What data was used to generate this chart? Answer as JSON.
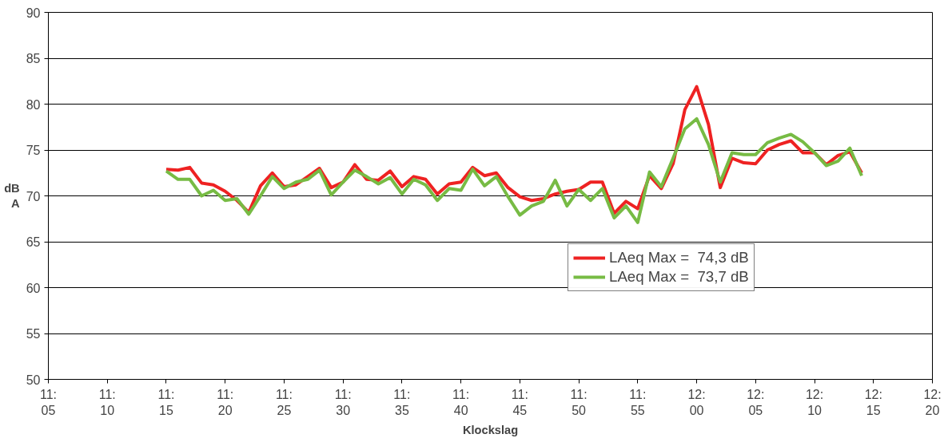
{
  "chart_data": {
    "type": "line",
    "xlabel": "Klockslag",
    "ylabel": "dB\nA",
    "categories": [
      "11:\n05",
      null,
      null,
      null,
      null,
      "11:\n10",
      null,
      null,
      null,
      null,
      "11:\n15",
      null,
      null,
      null,
      null,
      "11:\n20",
      null,
      null,
      null,
      null,
      "11:\n25",
      null,
      null,
      null,
      null,
      "11:\n30",
      null,
      null,
      null,
      null,
      "11:\n35",
      null,
      null,
      null,
      null,
      "11:\n40",
      null,
      null,
      null,
      null,
      "11:\n45",
      null,
      null,
      null,
      null,
      "11:\n50",
      null,
      null,
      null,
      null,
      "11:\n55",
      null,
      null,
      null,
      null,
      "12:\n00",
      null,
      null,
      null,
      null,
      "12:\n05",
      null,
      null,
      null,
      null,
      "12:\n10",
      null,
      null,
      null,
      null,
      "12:\n15",
      null,
      null,
      null,
      null,
      "12:\n20"
    ],
    "series": [
      {
        "name": "LAeq Max =  74,3 dB",
        "color": "#ee2222",
        "values": [
          null,
          null,
          null,
          null,
          null,
          null,
          null,
          null,
          null,
          null,
          72.9,
          72.8,
          73.1,
          71.4,
          71.2,
          70.5,
          69.5,
          68.2,
          71.1,
          72.5,
          71.0,
          71.2,
          72.1,
          73.0,
          70.9,
          71.5,
          73.4,
          71.8,
          71.7,
          72.7,
          71.0,
          72.1,
          71.8,
          70.2,
          71.3,
          71.5,
          73.1,
          72.2,
          72.5,
          70.9,
          69.9,
          69.5,
          69.7,
          70.2,
          70.5,
          70.7,
          71.5,
          71.5,
          68.1,
          69.4,
          68.6,
          72.2,
          70.8,
          73.5,
          79.4,
          81.9,
          77.8,
          70.9,
          74.1,
          73.6,
          73.5,
          75.0,
          75.6,
          76.0,
          74.7,
          74.7,
          73.4,
          74.4,
          74.8,
          72.5,
          null,
          null,
          null,
          null,
          null,
          null
        ]
      },
      {
        "name": "LAeq Max =  73,7 dB",
        "color": "#77bb44",
        "values": [
          null,
          null,
          null,
          null,
          null,
          null,
          null,
          null,
          null,
          null,
          72.7,
          71.8,
          71.8,
          70.0,
          70.6,
          69.5,
          69.7,
          68.0,
          70.0,
          72.1,
          70.8,
          71.5,
          71.8,
          72.8,
          70.1,
          71.5,
          72.8,
          72.1,
          71.3,
          72.0,
          70.2,
          71.8,
          71.2,
          69.5,
          70.8,
          70.6,
          72.9,
          71.1,
          72.1,
          69.9,
          67.9,
          68.9,
          69.4,
          71.7,
          68.9,
          70.7,
          69.5,
          70.8,
          67.6,
          68.9,
          67.1,
          72.6,
          71.0,
          74.1,
          77.3,
          78.4,
          75.6,
          71.5,
          74.7,
          74.5,
          74.5,
          75.8,
          76.3,
          76.7,
          75.9,
          74.7,
          73.3,
          73.8,
          75.2,
          72.2,
          null,
          null,
          null,
          null,
          null,
          null
        ]
      }
    ],
    "ylim": [
      50,
      90
    ],
    "yticks": [
      50,
      55,
      60,
      65,
      70,
      75,
      80,
      85,
      90
    ],
    "grid": "y",
    "legend": "right",
    "marker": "none",
    "line_style": "solid"
  }
}
